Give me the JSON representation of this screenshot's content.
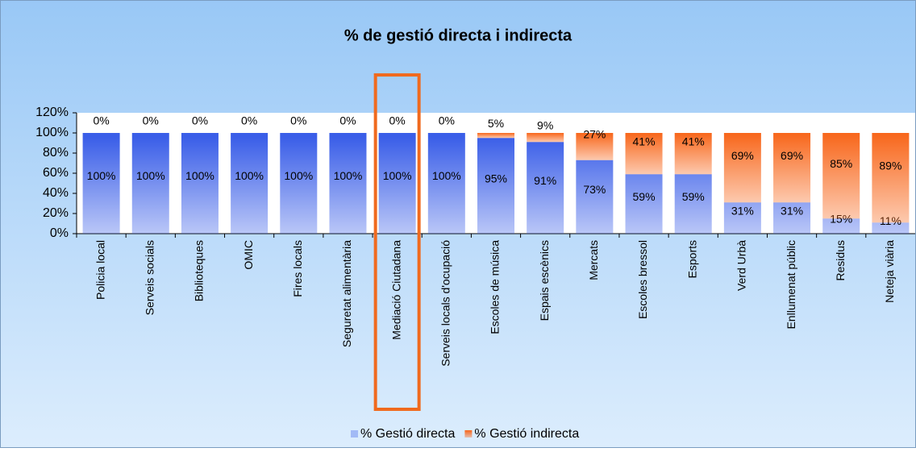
{
  "chart_data": {
    "type": "stacked_bar",
    "title": "% de gestió directa i indirecta",
    "categories": [
      "Policia local",
      "Serveis socials",
      "Biblioteques",
      "OMIC",
      "Fires locals",
      "Seguretat alimentària",
      "Mediació Ciutadana",
      "Serveis locals d'ocupació",
      "Escoles de música",
      "Espais escènics",
      "Mercats",
      "Escoles bressol",
      "Esports",
      "Verd Urbà",
      "Enllumenat públic",
      "Residus",
      "Neteja viària"
    ],
    "series": [
      {
        "name": "% Gestió directa",
        "color": "#3a5ee8",
        "values": [
          100,
          100,
          100,
          100,
          100,
          100,
          100,
          100,
          95,
          91,
          73,
          59,
          59,
          31,
          31,
          15,
          11
        ],
        "value_labels": [
          "100%",
          "100%",
          "100%",
          "100%",
          "100%",
          "100%",
          "100%",
          "100%",
          "95%",
          "91%",
          "73%",
          "59%",
          "59%",
          "31%",
          "31%",
          "15%",
          "11%"
        ]
      },
      {
        "name": "% Gestió indirecta",
        "color": "#f8661a",
        "values": [
          0,
          0,
          0,
          0,
          0,
          0,
          0,
          0,
          5,
          9,
          27,
          41,
          41,
          69,
          69,
          85,
          89
        ],
        "value_labels": [
          "0%",
          "0%",
          "0%",
          "0%",
          "0%",
          "0%",
          "0%",
          "0%",
          "5%",
          "9%",
          "27%",
          "41%",
          "41%",
          "69%",
          "69%",
          "85%",
          "89%"
        ]
      }
    ],
    "ylim": [
      0,
      120
    ],
    "yticks": [
      {
        "value": 0,
        "label": "0%"
      },
      {
        "value": 20,
        "label": "20%"
      },
      {
        "value": 40,
        "label": "40%"
      },
      {
        "value": 60,
        "label": "60%"
      },
      {
        "value": 80,
        "label": "80%"
      },
      {
        "value": 100,
        "label": "100%"
      },
      {
        "value": 120,
        "label": "120%"
      }
    ]
  }
}
